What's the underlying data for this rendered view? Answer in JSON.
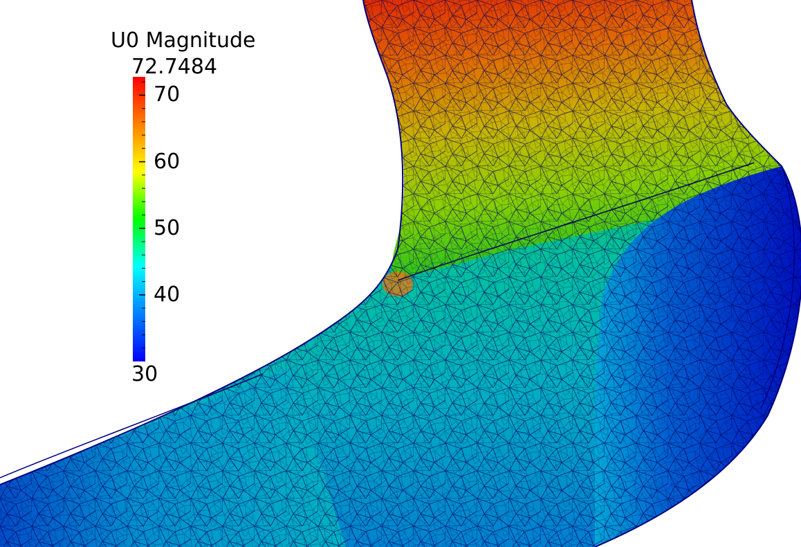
{
  "legend": {
    "title": "U0 Magnitude",
    "max_label": "72.7484",
    "min_label": "30",
    "range": [
      30,
      72.7484
    ],
    "ticks": [
      {
        "value": 70,
        "label": "70"
      },
      {
        "value": 60,
        "label": "60"
      },
      {
        "value": 50,
        "label": "50"
      },
      {
        "value": 40,
        "label": "40"
      }
    ],
    "colormap": [
      "#0000ff",
      "#0080ff",
      "#00ffff",
      "#00ff00",
      "#ffff00",
      "#ff8000",
      "#ff0000"
    ]
  },
  "colors": {
    "background": "#ffffff",
    "mesh_edges": "#000080"
  }
}
